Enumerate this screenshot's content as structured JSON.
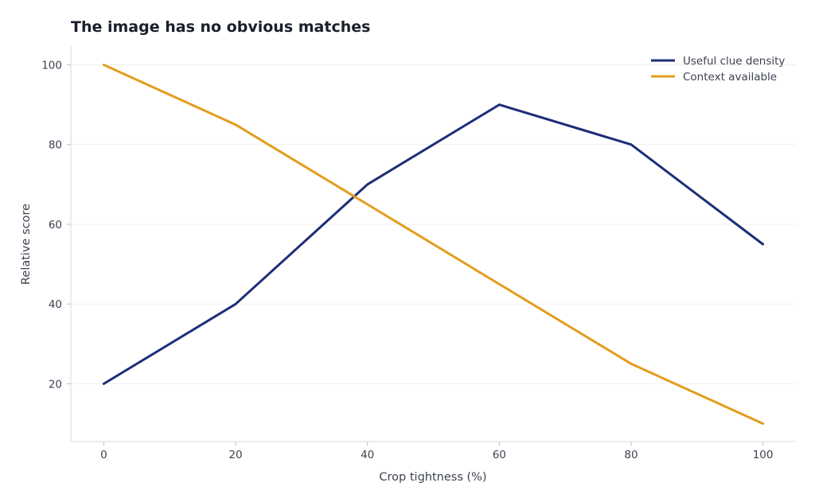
{
  "chart_data": {
    "type": "line",
    "title": "The image has no obvious matches",
    "xlabel": "Crop tightness (%)",
    "ylabel": "Relative score",
    "x": [
      0,
      20,
      40,
      60,
      80,
      100
    ],
    "xticks": [
      0,
      20,
      40,
      60,
      80,
      100
    ],
    "yticks": [
      20,
      40,
      60,
      80,
      100
    ],
    "xlim": [
      -5,
      105
    ],
    "ylim": [
      5.5,
      104.7
    ],
    "grid": "horizontal",
    "legend_position": "top-right",
    "series": [
      {
        "name": "Useful clue density",
        "color": "#1e2d78",
        "values": [
          20,
          40,
          70,
          90,
          80,
          55
        ]
      },
      {
        "name": "Context available",
        "color": "#e39d1d",
        "values": [
          100,
          85,
          65,
          45,
          25,
          10
        ]
      }
    ]
  }
}
